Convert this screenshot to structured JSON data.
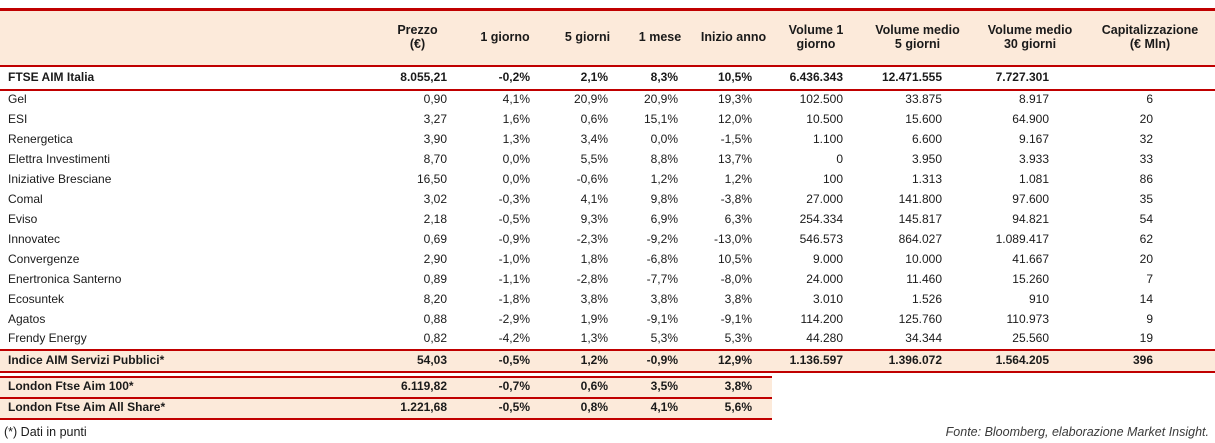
{
  "colors": {
    "accent": "#C00000",
    "band_bg": "#FCEADA"
  },
  "table": {
    "headers": [
      "",
      "Prezzo\n(€)",
      "1 giorno",
      "5 giorni",
      "1 mese",
      "Inizio anno",
      "Volume 1\ngiorno",
      "Volume medio\n5 giorni",
      "Volume medio\n30 giorni",
      "Capitalizzazione\n(€ Mln)"
    ],
    "index_row": {
      "name": "FTSE AIM Italia",
      "values": [
        "8.055,21",
        "-0,2%",
        "2,1%",
        "8,3%",
        "10,5%",
        "6.436.343",
        "12.471.555",
        "7.727.301",
        ""
      ]
    },
    "companies": [
      {
        "name": "Gel",
        "values": [
          "0,90",
          "4,1%",
          "20,9%",
          "20,9%",
          "19,3%",
          "102.500",
          "33.875",
          "8.917",
          "6"
        ]
      },
      {
        "name": "ESI",
        "values": [
          "3,27",
          "1,6%",
          "0,6%",
          "15,1%",
          "12,0%",
          "10.500",
          "15.600",
          "64.900",
          "20"
        ]
      },
      {
        "name": "Renergetica",
        "values": [
          "3,90",
          "1,3%",
          "3,4%",
          "0,0%",
          "-1,5%",
          "1.100",
          "6.600",
          "9.167",
          "32"
        ]
      },
      {
        "name": "Elettra Investimenti",
        "values": [
          "8,70",
          "0,0%",
          "5,5%",
          "8,8%",
          "13,7%",
          "0",
          "3.950",
          "3.933",
          "33"
        ]
      },
      {
        "name": "Iniziative Bresciane",
        "values": [
          "16,50",
          "0,0%",
          "-0,6%",
          "1,2%",
          "1,2%",
          "100",
          "1.313",
          "1.081",
          "86"
        ]
      },
      {
        "name": "Comal",
        "values": [
          "3,02",
          "-0,3%",
          "4,1%",
          "9,8%",
          "-3,8%",
          "27.000",
          "141.800",
          "97.600",
          "35"
        ]
      },
      {
        "name": "Eviso",
        "values": [
          "2,18",
          "-0,5%",
          "9,3%",
          "6,9%",
          "6,3%",
          "254.334",
          "145.817",
          "94.821",
          "54"
        ]
      },
      {
        "name": "Innovatec",
        "values": [
          "0,69",
          "-0,9%",
          "-2,3%",
          "-9,2%",
          "-13,0%",
          "546.573",
          "864.027",
          "1.089.417",
          "62"
        ]
      },
      {
        "name": "Convergenze",
        "values": [
          "2,90",
          "-1,0%",
          "1,8%",
          "-6,8%",
          "10,5%",
          "9.000",
          "10.000",
          "41.667",
          "20"
        ]
      },
      {
        "name": "Enertronica Santerno",
        "values": [
          "0,89",
          "-1,1%",
          "-2,8%",
          "-7,7%",
          "-8,0%",
          "24.000",
          "11.460",
          "15.260",
          "7"
        ]
      },
      {
        "name": "Ecosuntek",
        "values": [
          "8,20",
          "-1,8%",
          "3,8%",
          "3,8%",
          "3,8%",
          "3.010",
          "1.526",
          "910",
          "14"
        ]
      },
      {
        "name": "Agatos",
        "values": [
          "0,88",
          "-2,9%",
          "1,9%",
          "-9,1%",
          "-9,1%",
          "114.200",
          "125.760",
          "110.973",
          "9"
        ]
      },
      {
        "name": "Frendy Energy",
        "values": [
          "0,82",
          "-4,2%",
          "1,3%",
          "5,3%",
          "5,3%",
          "44.280",
          "34.344",
          "25.560",
          "19"
        ]
      }
    ],
    "aggregate_row": {
      "name": "Indice AIM Servizi Pubblici*",
      "values": [
        "54,03",
        "-0,5%",
        "1,2%",
        "-0,9%",
        "12,9%",
        "1.136.597",
        "1.396.072",
        "1.564.205",
        "396"
      ]
    },
    "london_rows": [
      {
        "name": "London Ftse Aim 100*",
        "values": [
          "6.119,82",
          "-0,7%",
          "0,6%",
          "3,5%",
          "3,8%",
          "",
          "",
          "",
          ""
        ]
      },
      {
        "name": "London Ftse Aim All Share*",
        "values": [
          "1.221,68",
          "-0,5%",
          "0,8%",
          "4,1%",
          "5,6%",
          "",
          "",
          "",
          ""
        ]
      }
    ]
  },
  "footer": {
    "note": "(*) Dati in punti",
    "source": "Fonte: Bloomberg, elaborazione Market Insight."
  }
}
